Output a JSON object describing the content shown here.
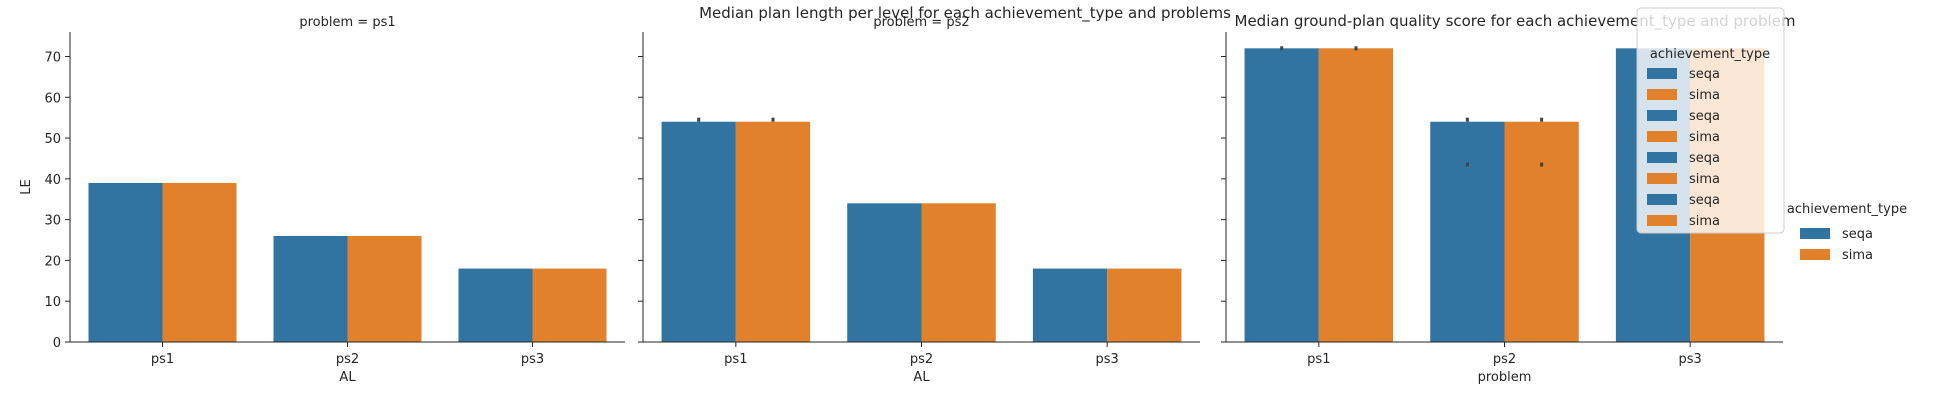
{
  "suptitles": [
    "Median plan length per level for each achievement_type and problems",
    "Median ground-plan quality score for each achievement_type and problem"
  ],
  "colors": {
    "seqa": "#3274a1",
    "sima": "#e1812c"
  },
  "chart_data": [
    {
      "type": "bar",
      "title": "problem = ps1",
      "xlabel": "AL",
      "ylabel": "LE",
      "ylim": [
        0,
        76
      ],
      "yticks": [
        0,
        10,
        20,
        30,
        40,
        50,
        60,
        70
      ],
      "categories": [
        "ps1",
        "ps2",
        "ps3"
      ],
      "series": [
        {
          "name": "seqa",
          "values": [
            39,
            26,
            18
          ]
        },
        {
          "name": "sima",
          "values": [
            39,
            26,
            18
          ]
        }
      ],
      "errors": []
    },
    {
      "type": "bar",
      "title": "problem = ps2",
      "xlabel": "AL",
      "ylabel": "",
      "ylim": [
        0,
        76
      ],
      "categories": [
        "ps1",
        "ps2",
        "ps3"
      ],
      "series": [
        {
          "name": "seqa",
          "values": [
            54,
            34,
            18
          ]
        },
        {
          "name": "sima",
          "values": [
            54,
            34,
            18
          ]
        }
      ],
      "errors": [
        {
          "series": 0,
          "category": 0,
          "value": 54.5
        },
        {
          "series": 1,
          "category": 0,
          "value": 54.5
        }
      ]
    },
    {
      "type": "bar",
      "title": "",
      "xlabel": "problem",
      "ylabel": "",
      "ylim": [
        0,
        76
      ],
      "categories": [
        "ps1",
        "ps2",
        "ps3"
      ],
      "series": [
        {
          "name": "seqa",
          "values": [
            72,
            54,
            72
          ]
        },
        {
          "name": "sima",
          "values": [
            72,
            54,
            72
          ]
        }
      ],
      "errors": [
        {
          "series": 0,
          "category": 0,
          "value": 72
        },
        {
          "series": 1,
          "category": 0,
          "value": 72
        },
        {
          "series": 0,
          "category": 1,
          "value": 54.5
        },
        {
          "series": 1,
          "category": 1,
          "value": 54.5
        },
        {
          "series": 0,
          "category": 1,
          "value": 43.5
        },
        {
          "series": 1,
          "category": 1,
          "value": 43.5
        }
      ]
    }
  ],
  "inner_legend": {
    "title": "achievement_type",
    "entries": [
      "seqa",
      "sima",
      "seqa",
      "sima",
      "seqa",
      "sima",
      "seqa",
      "sima"
    ]
  },
  "outer_legend": {
    "title": "achievement_type",
    "entries": [
      "seqa",
      "sima"
    ]
  }
}
